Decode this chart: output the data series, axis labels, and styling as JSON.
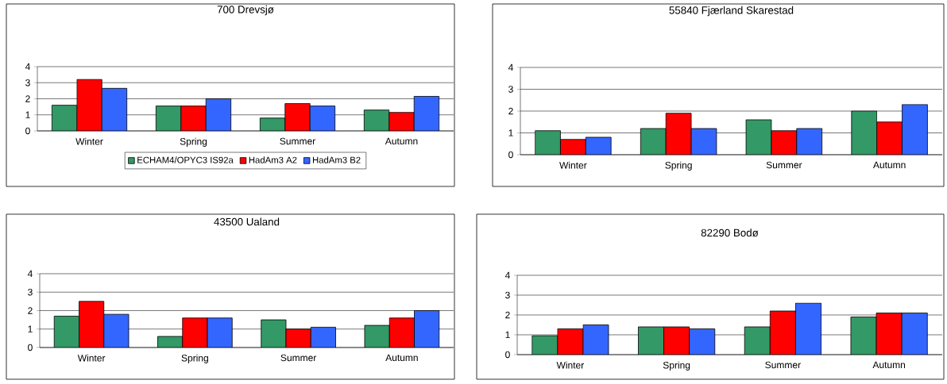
{
  "chart_data": [
    {
      "type": "bar",
      "title": "700 Drevsjø",
      "categories": [
        "Winter",
        "Spring",
        "Summer",
        "Autumn"
      ],
      "series": [
        {
          "name": "ECHAM4/OPYC3 IS92a",
          "color": "#339966",
          "values": [
            1.6,
            1.55,
            0.8,
            1.3
          ]
        },
        {
          "name": "HadAm3 A2",
          "color": "#ff0000",
          "values": [
            3.2,
            1.55,
            1.7,
            1.15
          ]
        },
        {
          "name": "HadAm3 B2",
          "color": "#3366ff",
          "values": [
            2.65,
            2.0,
            1.55,
            2.15
          ]
        }
      ],
      "ylim": [
        0,
        4
      ],
      "yticks": [
        0,
        1,
        2,
        3,
        4
      ],
      "grid": "y",
      "legend": "bottom"
    },
    {
      "type": "bar",
      "title": "55840 Fjærland Skarestad",
      "categories": [
        "Winter",
        "Spring",
        "Summer",
        "Autumn"
      ],
      "series": [
        {
          "color": "#339966",
          "values": [
            1.1,
            1.2,
            1.6,
            2.0
          ]
        },
        {
          "color": "#ff0000",
          "values": [
            0.7,
            1.9,
            1.1,
            1.5
          ]
        },
        {
          "color": "#3366ff",
          "values": [
            0.8,
            1.2,
            1.2,
            2.3
          ]
        }
      ],
      "ylim": [
        0,
        4
      ],
      "yticks": [
        0,
        1,
        2,
        3,
        4
      ],
      "grid": "y"
    },
    {
      "type": "bar",
      "title": "43500 Ualand",
      "categories": [
        "Winter",
        "Spring",
        "Summer",
        "Autumn"
      ],
      "series": [
        {
          "color": "#339966",
          "values": [
            1.7,
            0.6,
            1.5,
            1.2
          ]
        },
        {
          "color": "#ff0000",
          "values": [
            2.5,
            1.6,
            1.0,
            1.6
          ]
        },
        {
          "color": "#3366ff",
          "values": [
            1.8,
            1.6,
            1.1,
            2.0
          ]
        }
      ],
      "ylim": [
        0,
        4
      ],
      "yticks": [
        0,
        1,
        2,
        3,
        4
      ],
      "grid": "y"
    },
    {
      "type": "bar",
      "title": "82290 Bodø",
      "categories": [
        "Winter",
        "Spring",
        "Summer",
        "Autumn"
      ],
      "series": [
        {
          "color": "#339966",
          "values": [
            0.95,
            1.4,
            1.4,
            1.9
          ]
        },
        {
          "color": "#ff0000",
          "values": [
            1.3,
            1.4,
            2.2,
            2.1
          ]
        },
        {
          "color": "#3366ff",
          "values": [
            1.5,
            1.3,
            2.6,
            2.1
          ]
        }
      ],
      "ylim": [
        0,
        4
      ],
      "yticks": [
        0,
        1,
        2,
        3,
        4
      ],
      "grid": "y"
    }
  ]
}
